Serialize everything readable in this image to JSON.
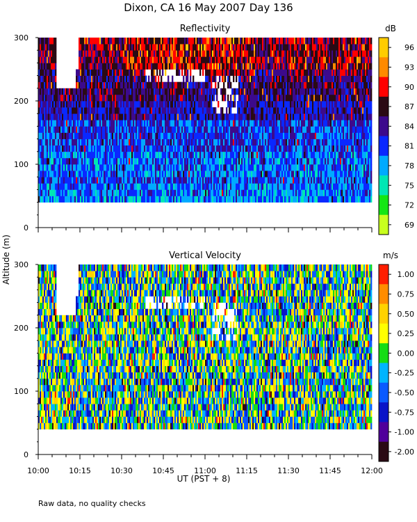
{
  "figure": {
    "title": "Dixon, CA 16 May 2007  Day 136",
    "ylabel": "Altitude (m)",
    "xlabel": "UT  (PST + 8)",
    "footnote": "Raw data, no quality checks"
  },
  "chart_data": [
    {
      "type": "heatmap",
      "title": "Reflectivity",
      "colorbar_unit": "dB",
      "colorbar_ticks": [
        "96",
        "93",
        "90",
        "87",
        "84",
        "81",
        "78",
        "75",
        "72",
        "69"
      ],
      "colorbar_colors": [
        "#ffcc00",
        "#ff8a00",
        "#ff0000",
        "#2a0a14",
        "#3c0a8c",
        "#0a28ff",
        "#00aaff",
        "#00e6b4",
        "#14e614",
        "#c8ff1e"
      ],
      "xlabel": "UT  (PST + 8)",
      "ylabel": "Altitude (m)",
      "x_ticks": [
        "10:00",
        "10:15",
        "10:30",
        "10:45",
        "11:00",
        "11:15",
        "11:30",
        "11:45",
        "12:00"
      ],
      "y_ticks": [
        "0",
        "100",
        "200",
        "300"
      ],
      "xlim": [
        "10:00",
        "12:00"
      ],
      "ylim": [
        0,
        300
      ],
      "data_altitude_range": [
        40,
        300
      ]
    },
    {
      "type": "heatmap",
      "title": "Vertical Velocity",
      "colorbar_unit": "m/s",
      "colorbar_ticks": [
        "1.00",
        "0.75",
        "0.50",
        "0.25",
        "0.00",
        "-0.25",
        "-0.50",
        "-0.75",
        "-1.00",
        "-2.00"
      ],
      "colorbar_colors": [
        "#ff1e00",
        "#ff8c00",
        "#ffd200",
        "#ffff00",
        "#14dc14",
        "#00b4ff",
        "#0a5aff",
        "#0a14c8",
        "#50009b",
        "#2a0a14"
      ],
      "xlabel": "UT  (PST + 8)",
      "ylabel": "Altitude (m)",
      "x_ticks": [
        "10:00",
        "10:15",
        "10:30",
        "10:45",
        "11:00",
        "11:15",
        "11:30",
        "11:45",
        "12:00"
      ],
      "y_ticks": [
        "0",
        "100",
        "200",
        "300"
      ],
      "xlim": [
        "10:00",
        "12:00"
      ],
      "ylim": [
        0,
        300
      ],
      "data_altitude_range": [
        40,
        300
      ]
    }
  ]
}
